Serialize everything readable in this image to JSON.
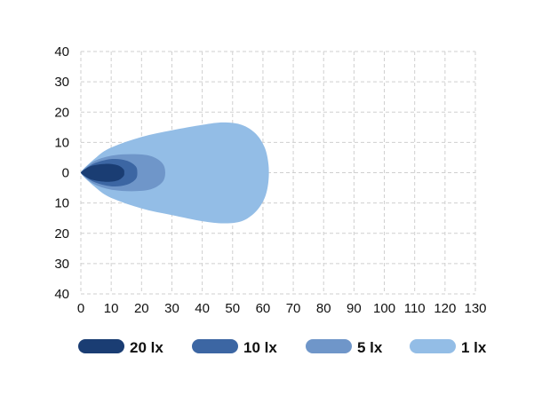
{
  "chart_data": {
    "type": "area",
    "title": "",
    "xlabel": "",
    "ylabel": "",
    "xlim": [
      0,
      130
    ],
    "ylim": [
      -40,
      40
    ],
    "grid": true,
    "legend_position": "bottom",
    "x_ticks": [
      "0",
      "10",
      "20",
      "30",
      "40",
      "50",
      "60",
      "70",
      "80",
      "90",
      "100",
      "110",
      "120",
      "130"
    ],
    "y_ticks": [
      "40",
      "30",
      "20",
      "10",
      "0",
      "10",
      "20",
      "30",
      "40"
    ],
    "series": [
      {
        "name": "1 lx",
        "color": "#93bde6",
        "contour": [
          [
            0,
            0
          ],
          [
            5,
            5
          ],
          [
            10,
            8.3
          ],
          [
            20,
            11.8
          ],
          [
            30,
            14
          ],
          [
            40,
            15.8
          ],
          [
            47,
            16.6
          ],
          [
            53,
            15.8
          ],
          [
            57.5,
            13
          ],
          [
            60.5,
            8.5
          ],
          [
            61.8,
            3
          ],
          [
            61.8,
            -3
          ],
          [
            60.5,
            -8.5
          ],
          [
            57.5,
            -13
          ],
          [
            53,
            -16
          ],
          [
            47,
            -16.7
          ],
          [
            40,
            -16
          ],
          [
            30,
            -14
          ],
          [
            20,
            -11.8
          ],
          [
            10,
            -8.3
          ],
          [
            5,
            -5
          ]
        ]
      },
      {
        "name": "5 lx",
        "color": "#6f96c9",
        "contour": [
          [
            0,
            0
          ],
          [
            4,
            3.6
          ],
          [
            10,
            5.6
          ],
          [
            17,
            6.1
          ],
          [
            23,
            5.5
          ],
          [
            26.8,
            3.2
          ],
          [
            27.8,
            0
          ],
          [
            26.8,
            -3.2
          ],
          [
            23,
            -5.5
          ],
          [
            17,
            -6.1
          ],
          [
            10,
            -5.6
          ],
          [
            4,
            -3.6
          ]
        ]
      },
      {
        "name": "10 lx",
        "color": "#3c66a3",
        "contour": [
          [
            0,
            0
          ],
          [
            4,
            2.9
          ],
          [
            10,
            4.5
          ],
          [
            15,
            4
          ],
          [
            18,
            2.2
          ],
          [
            18.6,
            0
          ],
          [
            18,
            -2.2
          ],
          [
            15,
            -4
          ],
          [
            10,
            -4.5
          ],
          [
            4,
            -2.9
          ]
        ]
      },
      {
        "name": "20 lx",
        "color": "#1a3d73",
        "contour": [
          [
            0,
            0
          ],
          [
            3,
            2.1
          ],
          [
            8,
            2.9
          ],
          [
            12,
            2.5
          ],
          [
            14,
            1.2
          ],
          [
            14.3,
            0
          ],
          [
            14,
            -1.2
          ],
          [
            12,
            -2.6
          ],
          [
            8,
            -3
          ],
          [
            3,
            -2.1
          ]
        ]
      }
    ],
    "legend": [
      {
        "label": "20 lx",
        "color": "#1a3d73"
      },
      {
        "label": "10 lx",
        "color": "#3c66a3"
      },
      {
        "label": "5 lx",
        "color": "#6f96c9"
      },
      {
        "label": "1 lx",
        "color": "#93bde6"
      }
    ]
  }
}
